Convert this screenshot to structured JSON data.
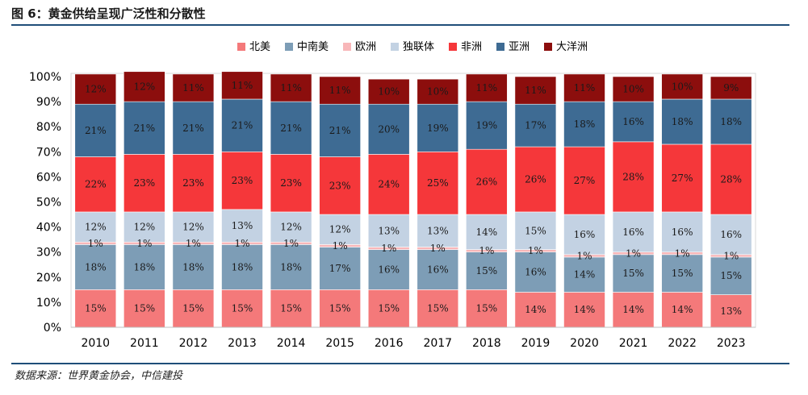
{
  "figure": {
    "title": "图 6：黄金供给呈现广泛性和分散性",
    "source": "数据来源：世界黄金协会，中信建投"
  },
  "chart_data": {
    "type": "bar",
    "stacked": true,
    "categories": [
      "2010",
      "2011",
      "2012",
      "2013",
      "2014",
      "2015",
      "2016",
      "2017",
      "2018",
      "2019",
      "2020",
      "2021",
      "2022",
      "2023"
    ],
    "ylim": [
      0,
      100
    ],
    "yticks": [
      "0%",
      "10%",
      "20%",
      "30%",
      "40%",
      "50%",
      "60%",
      "70%",
      "80%",
      "90%",
      "100%"
    ],
    "legend_position": "top",
    "series": [
      {
        "name": "北美",
        "color": "#f4797a",
        "values": [
          15,
          15,
          15,
          15,
          15,
          15,
          15,
          15,
          15,
          14,
          14,
          14,
          14,
          13
        ]
      },
      {
        "name": "中南美",
        "color": "#7d9db6",
        "values": [
          18,
          18,
          18,
          18,
          18,
          17,
          16,
          16,
          15,
          16,
          14,
          15,
          15,
          15
        ]
      },
      {
        "name": "欧洲",
        "color": "#f8b7b9",
        "values": [
          1,
          1,
          1,
          1,
          1,
          1,
          1,
          1,
          1,
          1,
          1,
          1,
          1,
          1
        ]
      },
      {
        "name": "独联体",
        "color": "#c3d2e3",
        "values": [
          12,
          12,
          12,
          13,
          12,
          12,
          13,
          13,
          14,
          15,
          16,
          16,
          16,
          16
        ]
      },
      {
        "name": "非洲",
        "color": "#f5373a",
        "values": [
          22,
          23,
          23,
          23,
          23,
          23,
          24,
          25,
          26,
          26,
          27,
          28,
          27,
          28
        ]
      },
      {
        "name": "亚洲",
        "color": "#3e6b93",
        "values": [
          21,
          21,
          21,
          21,
          21,
          21,
          20,
          19,
          19,
          17,
          18,
          16,
          18,
          18
        ]
      },
      {
        "name": "大洋洲",
        "color": "#8c0e0d",
        "values": [
          12,
          12,
          11,
          11,
          11,
          11,
          10,
          10,
          11,
          11,
          11,
          10,
          10,
          9
        ]
      }
    ]
  }
}
